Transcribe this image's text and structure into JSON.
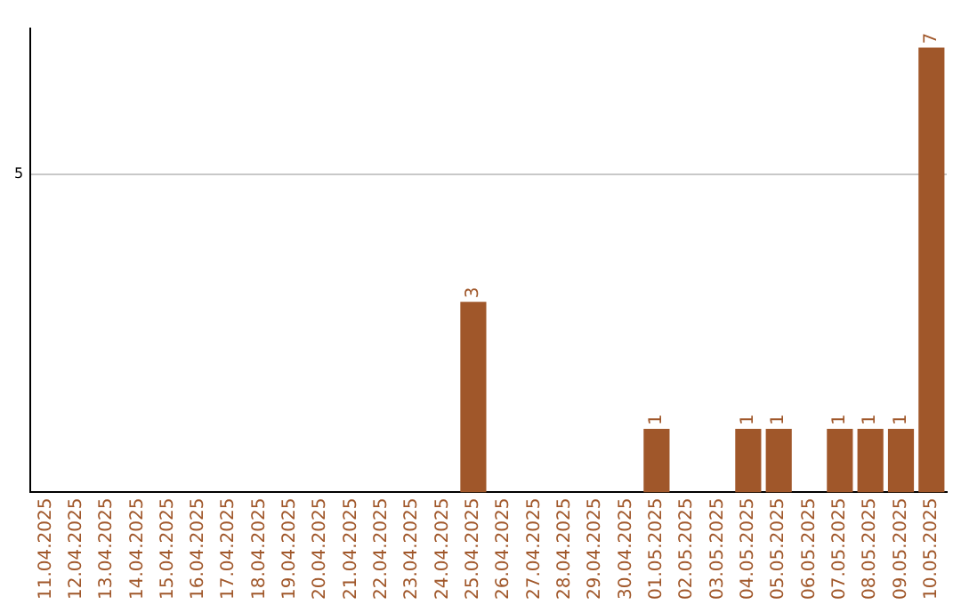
{
  "chart_data": {
    "type": "bar",
    "categories": [
      "11.04.2025",
      "12.04.2025",
      "13.04.2025",
      "14.04.2025",
      "15.04.2025",
      "16.04.2025",
      "17.04.2025",
      "18.04.2025",
      "19.04.2025",
      "20.04.2025",
      "21.04.2025",
      "22.04.2025",
      "23.04.2025",
      "24.04.2025",
      "25.04.2025",
      "26.04.2025",
      "27.04.2025",
      "28.04.2025",
      "29.04.2025",
      "30.04.2025",
      "01.05.2025",
      "02.05.2025",
      "03.05.2025",
      "04.05.2025",
      "05.05.2025",
      "06.05.2025",
      "07.05.2025",
      "08.05.2025",
      "09.05.2025",
      "10.05.2025"
    ],
    "values": [
      null,
      null,
      null,
      null,
      null,
      null,
      null,
      null,
      null,
      null,
      null,
      null,
      null,
      null,
      3,
      null,
      null,
      null,
      null,
      null,
      1,
      null,
      null,
      1,
      1,
      null,
      1,
      1,
      1,
      7
    ],
    "data_labels": true,
    "color": "#a0572a",
    "ylim": [
      0,
      7.3
    ],
    "yticks": [
      5
    ],
    "grid": "y",
    "legend": false
  }
}
